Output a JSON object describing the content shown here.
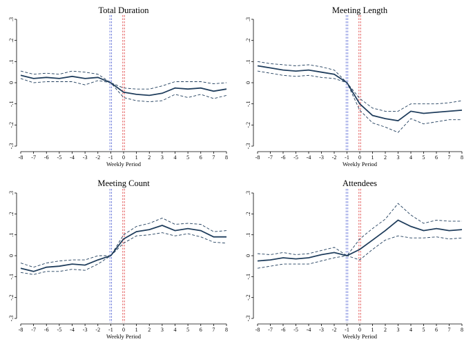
{
  "colors": {
    "estimate": "#1f3d5c",
    "ci": "#1f3d5c",
    "vline_blue": "#5b6bd6",
    "vline_red": "#e04848",
    "axis": "#000000"
  },
  "chart_data": [
    {
      "type": "line",
      "title": "Total Duration",
      "xlabel": "Weekly Period",
      "ylabel": "",
      "x": [
        -8,
        -7,
        -6,
        -5,
        -4,
        -3,
        -2,
        -1,
        0,
        1,
        2,
        3,
        4,
        5,
        6,
        7,
        8
      ],
      "xticks": [
        -8,
        -7,
        -6,
        -5,
        -4,
        -3,
        -2,
        -1,
        0,
        1,
        2,
        3,
        4,
        5,
        6,
        7,
        8
      ],
      "yticks": [
        3,
        2,
        1,
        0,
        -1,
        -2,
        -3
      ],
      "ytick_labels": [
        ".3",
        ".2",
        ".1",
        "0",
        "-.1",
        "-.2",
        "-.3"
      ],
      "ylim": [
        -0.3,
        0.3
      ],
      "vlines": [
        -1,
        0
      ],
      "series": [
        {
          "name": "estimate",
          "style": "solid",
          "values": [
            0.035,
            0.02,
            0.025,
            0.02,
            0.03,
            0.02,
            0.025,
            0.0,
            -0.045,
            -0.055,
            -0.06,
            -0.05,
            -0.025,
            -0.03,
            -0.025,
            -0.04,
            -0.03
          ]
        },
        {
          "name": "upper ci",
          "style": "dashed",
          "values": [
            0.055,
            0.04,
            0.045,
            0.04,
            0.055,
            0.05,
            0.04,
            0.0,
            -0.025,
            -0.03,
            -0.03,
            -0.015,
            0.005,
            0.005,
            0.005,
            -0.005,
            0.0
          ]
        },
        {
          "name": "lower ci",
          "style": "dashed",
          "values": [
            0.02,
            0.0,
            0.005,
            0.005,
            0.005,
            -0.01,
            0.01,
            0.0,
            -0.07,
            -0.085,
            -0.09,
            -0.085,
            -0.055,
            -0.07,
            -0.055,
            -0.075,
            -0.06
          ]
        }
      ]
    },
    {
      "type": "line",
      "title": "Meeting Length",
      "xlabel": "Weekly Period",
      "ylabel": "",
      "x": [
        -8,
        -7,
        -6,
        -5,
        -4,
        -3,
        -2,
        -1,
        0,
        1,
        2,
        3,
        4,
        5,
        6,
        7,
        8
      ],
      "xticks": [
        -8,
        -7,
        -6,
        -5,
        -4,
        -3,
        -2,
        -1,
        0,
        1,
        2,
        3,
        4,
        5,
        6,
        7,
        8
      ],
      "yticks": [
        3,
        2,
        1,
        0,
        -1,
        -2,
        -3
      ],
      "ytick_labels": [
        ".3",
        ".2",
        ".1",
        "0",
        "-.1",
        "-.2",
        "-.3"
      ],
      "ylim": [
        -0.3,
        0.3
      ],
      "vlines": [
        -1,
        0
      ],
      "series": [
        {
          "name": "estimate",
          "style": "solid",
          "values": [
            0.08,
            0.07,
            0.06,
            0.055,
            0.06,
            0.05,
            0.04,
            0.0,
            -0.1,
            -0.155,
            -0.17,
            -0.18,
            -0.135,
            -0.145,
            -0.14,
            -0.135,
            -0.13
          ]
        },
        {
          "name": "upper ci",
          "style": "dashed",
          "values": [
            0.1,
            0.09,
            0.085,
            0.08,
            0.085,
            0.075,
            0.06,
            0.0,
            -0.075,
            -0.12,
            -0.135,
            -0.135,
            -0.1,
            -0.1,
            -0.1,
            -0.095,
            -0.085
          ]
        },
        {
          "name": "lower ci",
          "style": "dashed",
          "values": [
            0.055,
            0.045,
            0.035,
            0.03,
            0.035,
            0.025,
            0.02,
            0.0,
            -0.13,
            -0.19,
            -0.21,
            -0.235,
            -0.17,
            -0.195,
            -0.185,
            -0.175,
            -0.175
          ]
        }
      ]
    },
    {
      "type": "line",
      "title": "Meeting Count",
      "xlabel": "Weekly Period",
      "ylabel": "",
      "x": [
        -8,
        -7,
        -6,
        -5,
        -4,
        -3,
        -2,
        -1,
        0,
        1,
        2,
        3,
        4,
        5,
        6,
        7,
        8
      ],
      "xticks": [
        -8,
        -7,
        -6,
        -5,
        -4,
        -3,
        -2,
        -1,
        0,
        1,
        2,
        3,
        4,
        5,
        6,
        7,
        8
      ],
      "yticks": [
        3,
        2,
        1,
        0,
        -1,
        -2,
        -3
      ],
      "ytick_labels": [
        ".3",
        ".2",
        ".1",
        "0",
        "-.1",
        "-.2",
        "-.3"
      ],
      "ylim": [
        -0.3,
        0.3
      ],
      "vlines": [
        -1,
        0
      ],
      "series": [
        {
          "name": "estimate",
          "style": "solid",
          "values": [
            -0.06,
            -0.075,
            -0.055,
            -0.05,
            -0.04,
            -0.045,
            -0.02,
            0.0,
            0.08,
            0.115,
            0.125,
            0.145,
            0.12,
            0.13,
            0.12,
            0.09,
            0.09
          ]
        },
        {
          "name": "upper ci",
          "style": "dashed",
          "values": [
            -0.035,
            -0.055,
            -0.035,
            -0.025,
            -0.02,
            -0.02,
            0.0,
            0.0,
            0.1,
            0.14,
            0.155,
            0.18,
            0.15,
            0.155,
            0.15,
            0.115,
            0.12
          ]
        },
        {
          "name": "lower ci",
          "style": "dashed",
          "values": [
            -0.08,
            -0.09,
            -0.075,
            -0.075,
            -0.065,
            -0.07,
            -0.04,
            0.0,
            0.06,
            0.095,
            0.1,
            0.11,
            0.095,
            0.105,
            0.09,
            0.065,
            0.06
          ]
        }
      ]
    },
    {
      "type": "line",
      "title": "Attendees",
      "xlabel": "Weekly Period",
      "ylabel": "",
      "x": [
        -8,
        -7,
        -6,
        -5,
        -4,
        -3,
        -2,
        -1,
        0,
        1,
        2,
        3,
        4,
        5,
        6,
        7,
        8
      ],
      "xticks": [
        -8,
        -7,
        -6,
        -5,
        -4,
        -3,
        -2,
        -1,
        0,
        1,
        2,
        3,
        4,
        5,
        6,
        7,
        8
      ],
      "yticks": [
        3,
        2,
        1,
        0,
        -1,
        -2,
        -3
      ],
      "ytick_labels": [
        ".3",
        ".2",
        ".1",
        "0",
        "-.1",
        "-.2",
        "-.3"
      ],
      "ylim": [
        -0.3,
        0.3
      ],
      "vlines": [
        -1,
        0
      ],
      "series": [
        {
          "name": "estimate",
          "style": "solid",
          "values": [
            -0.025,
            -0.02,
            -0.01,
            -0.015,
            -0.01,
            0.005,
            0.015,
            0.0,
            0.03,
            0.075,
            0.12,
            0.17,
            0.14,
            0.12,
            0.13,
            0.12,
            0.125
          ]
        },
        {
          "name": "upper ci",
          "style": "dashed",
          "values": [
            0.01,
            0.005,
            0.015,
            0.005,
            0.01,
            0.025,
            0.04,
            0.0,
            0.08,
            0.13,
            0.175,
            0.25,
            0.195,
            0.155,
            0.17,
            0.165,
            0.165
          ]
        },
        {
          "name": "lower ci",
          "style": "dashed",
          "values": [
            -0.06,
            -0.05,
            -0.04,
            -0.04,
            -0.04,
            -0.025,
            -0.01,
            0.0,
            -0.02,
            0.03,
            0.075,
            0.095,
            0.085,
            0.085,
            0.09,
            0.08,
            0.085
          ]
        }
      ]
    }
  ]
}
